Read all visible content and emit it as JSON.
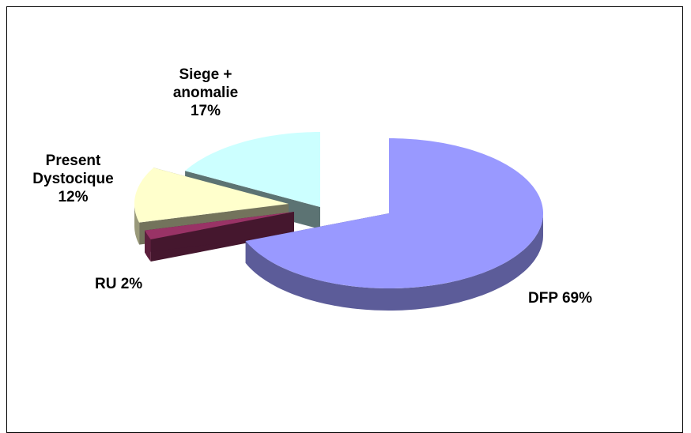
{
  "chart_data": {
    "type": "pie",
    "categories": [
      "DFP",
      "RU",
      "Present Dystocique",
      "Siege + anomalie"
    ],
    "values": [
      69,
      2,
      12,
      17
    ],
    "value_labels": [
      "69%",
      "2%",
      "12%",
      "17%"
    ],
    "colors": [
      "#9999ff",
      "#993366",
      "#ffffcc",
      "#ccffff"
    ]
  }
}
